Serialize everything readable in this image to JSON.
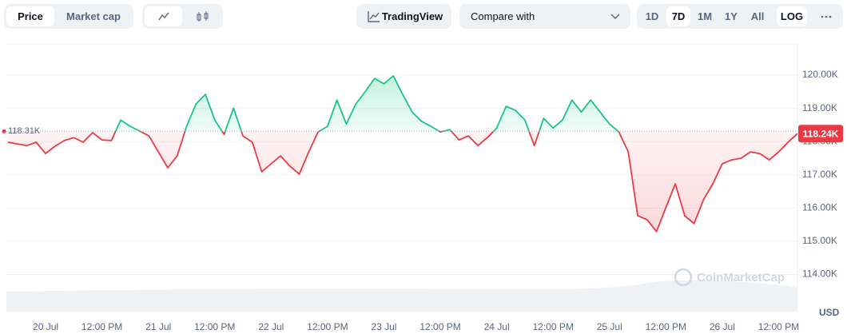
{
  "toolbar": {
    "price": "Price",
    "market_cap": "Market cap",
    "tradingview": "TradingView",
    "compare": "Compare with",
    "ranges": [
      "1D",
      "7D",
      "1M",
      "1Y",
      "All"
    ],
    "log": "LOG"
  },
  "chart_data": {
    "type": "line",
    "watermark": "CoinMarketCap",
    "currency": "USD",
    "up_color": "#16c784",
    "down_color": "#ea3943",
    "baseline": {
      "value": 118.31,
      "label": "118.31K"
    },
    "last_price": {
      "value": 118.24,
      "label": "118.24K"
    },
    "xlim": [
      -8,
      160
    ],
    "xticks": [
      {
        "value": 0,
        "label": "20 Jul"
      },
      {
        "value": 12,
        "label": "12:00 PM"
      },
      {
        "value": 24,
        "label": "21 Jul"
      },
      {
        "value": 36,
        "label": "12:00 PM"
      },
      {
        "value": 48,
        "label": "22 Jul"
      },
      {
        "value": 60,
        "label": "12:00 PM"
      },
      {
        "value": 72,
        "label": "23 Jul"
      },
      {
        "value": 84,
        "label": "12:00 PM"
      },
      {
        "value": 96,
        "label": "24 Jul"
      },
      {
        "value": 108,
        "label": "12:00 PM"
      },
      {
        "value": 120,
        "label": "25 Jul"
      },
      {
        "value": 132,
        "label": "12:00 PM"
      },
      {
        "value": 144,
        "label": "26 Jul"
      },
      {
        "value": 156,
        "label": "12:00 PM"
      }
    ],
    "ylim": [
      112.88,
      120.94
    ],
    "yticks": [
      {
        "value": 114,
        "label": "114.00K"
      },
      {
        "value": 115,
        "label": "115.00K"
      },
      {
        "value": 116,
        "label": "116.00K"
      },
      {
        "value": 117,
        "label": "117.00K"
      },
      {
        "value": 118,
        "label": "118.00K"
      },
      {
        "value": 119,
        "label": "119.00K"
      },
      {
        "value": 120,
        "label": "120.00K"
      }
    ],
    "grid": true,
    "x": [
      -8,
      -6,
      -4,
      -2,
      0,
      2,
      4,
      6,
      8,
      10,
      12,
      14,
      16,
      18,
      20,
      22,
      24,
      26,
      28,
      30,
      32,
      34,
      36,
      38,
      40,
      42,
      44,
      46,
      48,
      50,
      52,
      54,
      56,
      58,
      60,
      62,
      64,
      66,
      68,
      70,
      72,
      74,
      76,
      78,
      80,
      82,
      84,
      86,
      88,
      90,
      92,
      94,
      96,
      98,
      100,
      102,
      104,
      106,
      108,
      110,
      112,
      114,
      116,
      118,
      120,
      122,
      124,
      126,
      128,
      130,
      132,
      134,
      136,
      138,
      140,
      142,
      144,
      146,
      148,
      150,
      152,
      154,
      156,
      158,
      160
    ],
    "values": [
      117.98,
      117.93,
      117.88,
      117.98,
      117.64,
      117.86,
      118.03,
      118.12,
      117.98,
      118.27,
      118.05,
      118.03,
      118.65,
      118.46,
      118.32,
      118.17,
      117.69,
      117.21,
      117.57,
      118.46,
      119.13,
      119.42,
      118.65,
      118.22,
      119.01,
      118.17,
      117.98,
      117.09,
      117.33,
      117.57,
      117.26,
      117.02,
      117.69,
      118.29,
      118.46,
      119.25,
      118.53,
      119.13,
      119.5,
      119.9,
      119.74,
      119.98,
      119.42,
      118.89,
      118.61,
      118.46,
      118.29,
      118.36,
      118.05,
      118.17,
      117.88,
      118.12,
      118.41,
      119.06,
      118.94,
      118.65,
      117.88,
      118.7,
      118.41,
      118.65,
      119.25,
      118.89,
      119.25,
      118.89,
      118.53,
      118.29,
      117.69,
      115.77,
      115.65,
      115.29,
      116.01,
      116.73,
      115.77,
      115.53,
      116.25,
      116.73,
      117.33,
      117.45,
      117.5,
      117.69,
      117.64,
      117.45,
      117.69,
      117.98,
      118.24
    ]
  }
}
